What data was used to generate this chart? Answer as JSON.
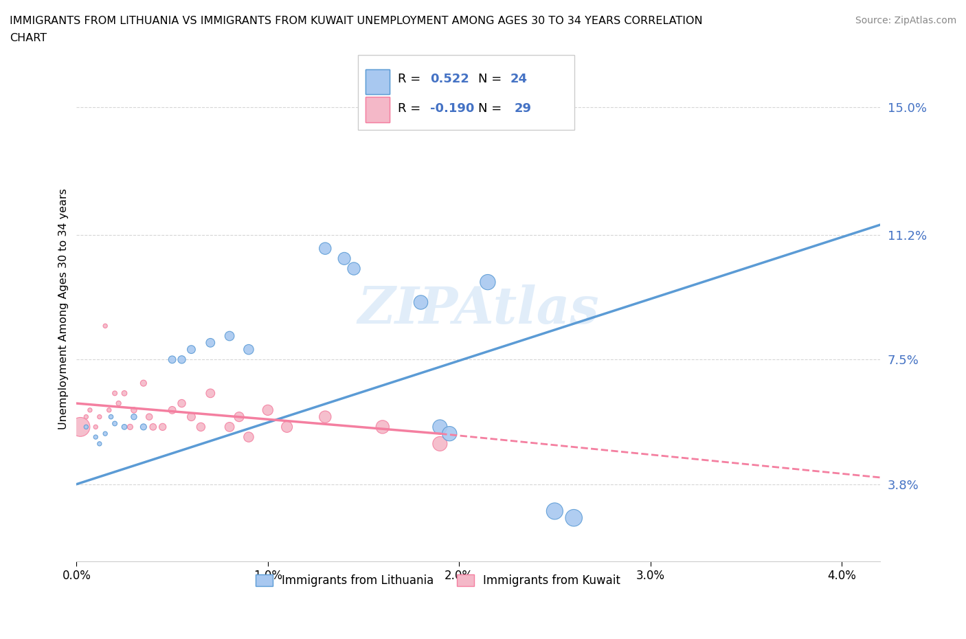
{
  "title_line1": "IMMIGRANTS FROM LITHUANIA VS IMMIGRANTS FROM KUWAIT UNEMPLOYMENT AMONG AGES 30 TO 34 YEARS CORRELATION",
  "title_line2": "CHART",
  "source": "Source: ZipAtlas.com",
  "ylabel": "Unemployment Among Ages 30 to 34 years",
  "color_lithuania": "#a8c8f0",
  "color_kuwait": "#f4b8c8",
  "color_line_lithuania": "#5b9bd5",
  "color_line_kuwait": "#f47fa0",
  "R_lithuania": "0.522",
  "N_lithuania": "24",
  "R_kuwait": "-0.190",
  "N_kuwait": "29",
  "watermark": "ZIPAtlas",
  "xlim": [
    0.0,
    4.2
  ],
  "ylim": [
    1.5,
    16.5
  ],
  "ytick_vals": [
    3.8,
    7.5,
    11.2,
    15.0
  ],
  "xtick_vals": [
    0.0,
    1.0,
    2.0,
    3.0,
    4.0
  ],
  "lit_x": [
    0.05,
    0.1,
    0.12,
    0.15,
    0.18,
    0.2,
    0.25,
    0.3,
    0.35,
    0.5,
    0.55,
    0.6,
    0.7,
    0.8,
    0.9,
    1.3,
    1.4,
    1.45,
    1.8,
    2.15,
    2.5,
    2.6,
    1.9,
    1.95
  ],
  "lit_y": [
    5.5,
    5.2,
    5.0,
    5.3,
    5.8,
    5.6,
    5.5,
    5.8,
    5.5,
    7.5,
    7.5,
    7.8,
    8.0,
    8.2,
    7.8,
    10.8,
    10.5,
    10.2,
    9.2,
    9.8,
    3.0,
    2.8,
    5.5,
    5.3
  ],
  "kuw_x": [
    0.02,
    0.05,
    0.07,
    0.1,
    0.12,
    0.15,
    0.17,
    0.2,
    0.22,
    0.25,
    0.28,
    0.3,
    0.35,
    0.38,
    0.4,
    0.45,
    0.5,
    0.55,
    0.6,
    0.65,
    0.7,
    0.8,
    0.85,
    0.9,
    1.0,
    1.1,
    1.3,
    1.6,
    1.9
  ],
  "kuw_y": [
    5.5,
    5.8,
    6.0,
    5.5,
    5.8,
    8.5,
    6.0,
    6.5,
    6.2,
    6.5,
    5.5,
    6.0,
    6.8,
    5.8,
    5.5,
    5.5,
    6.0,
    6.2,
    5.8,
    5.5,
    6.5,
    5.5,
    5.8,
    5.2,
    6.0,
    5.5,
    5.8,
    5.5,
    5.0
  ],
  "kuw_large_idx": 0,
  "kuw_large_size": 400,
  "lit_line_x0": 0.0,
  "lit_line_x1": 4.2,
  "lit_line_y0": 3.8,
  "lit_line_y1": 11.5,
  "kuw_solid_x0": 0.0,
  "kuw_solid_x1": 1.9,
  "kuw_solid_y0": 6.2,
  "kuw_solid_y1": 5.3,
  "kuw_dash_x0": 1.9,
  "kuw_dash_x1": 4.2,
  "kuw_dash_y0": 5.3,
  "kuw_dash_y1": 4.0
}
